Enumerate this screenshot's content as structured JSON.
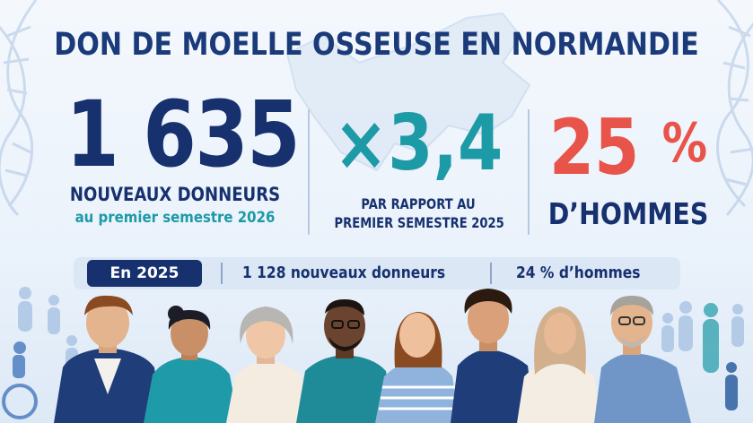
{
  "title": "DON DE MOELLE OSSEUSE EN NORMANDIE",
  "stats": {
    "donors": {
      "value": "1 635",
      "label": "NOUVEAUX DONNEURS",
      "sublabel": "au premier semestre 2026"
    },
    "growth": {
      "value": "×3,4",
      "label_line1": "PAR RAPPORT AU",
      "label_line2": "PREMIER SEMESTRE 2025"
    },
    "men": {
      "value": "25",
      "unit": "%",
      "label": "D’HOMMES"
    }
  },
  "year_band": {
    "badge": "En 2025",
    "donors": "1 128 nouveaux donneurs",
    "men": "24 % d’hommes"
  },
  "colors": {
    "navy": "#17316f",
    "teal": "#1c9aa6",
    "coral": "#e8544a",
    "band": "#dbe7f5"
  },
  "icons": [
    "dna-helix-icon",
    "normandy-map-icon",
    "person-silhouette-icon",
    "wheelchair-icon"
  ]
}
